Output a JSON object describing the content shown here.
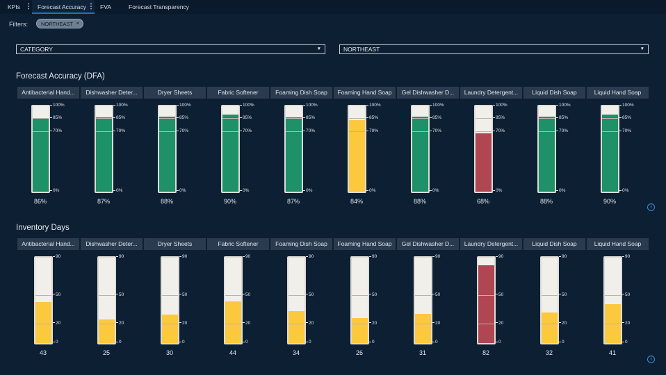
{
  "tabs": [
    {
      "label": "KPIs",
      "has_menu": true
    },
    {
      "label": "Forecast Accuracy",
      "has_menu": true,
      "active": true
    },
    {
      "label": "FVA",
      "has_menu": false
    },
    {
      "label": "Forecast Transparency",
      "has_menu": false
    }
  ],
  "filters": {
    "label": "Filters:",
    "chip": "NORTHEAST",
    "chip_remove": "×"
  },
  "selects": [
    {
      "value": "CATEGORY",
      "arrow": "▼"
    },
    {
      "value": "NORTHEAST",
      "arrow": "▼"
    }
  ],
  "colors": {
    "green": "#1e9168",
    "yellow": "#fcc83e",
    "red": "#b04652",
    "background": "#0d1f33",
    "header": "#2a3b4f"
  },
  "categories": [
    "Antibacterial Hand...",
    "Dishwasher Deter...",
    "Dryer Sheets",
    "Fabric Softener",
    "Foaming Dish Soap",
    "Foaming Hand Soap",
    "Gel Dishwasher D...",
    "Laundry Detergent...",
    "Liquid Dish Soap",
    "Liquid Hand Soap"
  ],
  "accuracy": {
    "title": "Forecast Accuracy (DFA)",
    "ticks": [
      {
        "label": "100%",
        "value": 100
      },
      {
        "label": "85%",
        "value": 85
      },
      {
        "label": "70%",
        "value": 70
      },
      {
        "label": "0%",
        "value": 0
      }
    ],
    "max": 100,
    "values": [
      86,
      87,
      88,
      90,
      87,
      84,
      88,
      68,
      88,
      90
    ],
    "labels": [
      "86%",
      "87%",
      "88%",
      "90%",
      "87%",
      "84%",
      "88%",
      "68%",
      "88%",
      "90%"
    ],
    "status": [
      "green",
      "green",
      "green",
      "green",
      "green",
      "yellow",
      "green",
      "red",
      "green",
      "green"
    ]
  },
  "inventory": {
    "title": "Inventory Days",
    "ticks": [
      {
        "label": "90",
        "value": 90
      },
      {
        "label": "50",
        "value": 50
      },
      {
        "label": "20",
        "value": 20
      },
      {
        "label": "0",
        "value": 0
      }
    ],
    "max": 90,
    "values": [
      43,
      25,
      30,
      44,
      34,
      26,
      31,
      82,
      32,
      41
    ],
    "labels": [
      "43",
      "25",
      "30",
      "44",
      "34",
      "26",
      "31",
      "82",
      "32",
      "41"
    ],
    "status": [
      "yellow",
      "yellow",
      "yellow",
      "yellow",
      "yellow",
      "yellow",
      "yellow",
      "red",
      "yellow",
      "yellow"
    ]
  },
  "info_icon": "i"
}
